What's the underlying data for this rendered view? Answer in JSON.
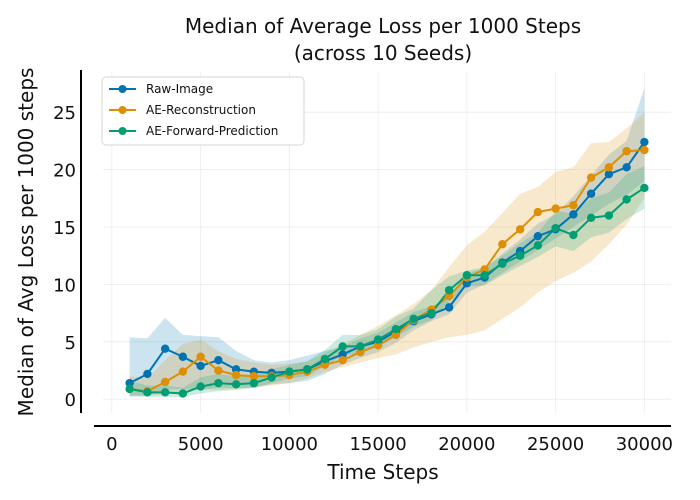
{
  "chart_data": {
    "type": "line",
    "title": "Median of Average Loss per 1000 Steps",
    "subtitle": "(across 10 Seeds)",
    "xlabel": "Time Steps",
    "ylabel": "Median of Avg Loss per 1000 steps",
    "xlim": [
      -500,
      31500
    ],
    "ylim": [
      -1.2,
      28.5
    ],
    "xticks": [
      0,
      5000,
      10000,
      15000,
      20000,
      25000,
      30000
    ],
    "yticks": [
      0,
      5,
      10,
      15,
      20,
      25
    ],
    "grid": true,
    "legend_position": "top-left",
    "x": [
      1000,
      2000,
      3000,
      4000,
      5000,
      6000,
      7000,
      8000,
      9000,
      10000,
      11000,
      12000,
      13000,
      14000,
      15000,
      16000,
      17000,
      18000,
      19000,
      20000,
      21000,
      22000,
      23000,
      24000,
      25000,
      26000,
      27000,
      28000,
      29000,
      30000
    ],
    "series": [
      {
        "name": "Raw-Image",
        "color": "#0173b2",
        "values": [
          1.4,
          2.2,
          4.4,
          3.7,
          2.9,
          3.4,
          2.6,
          2.4,
          2.3,
          2.4,
          2.6,
          3.3,
          3.9,
          4.6,
          5.0,
          5.9,
          6.8,
          7.4,
          8.0,
          10.1,
          10.6,
          11.9,
          12.9,
          14.2,
          14.8,
          16.1,
          17.9,
          19.6,
          20.2,
          22.4
        ],
        "band_low": [
          0.2,
          0.3,
          0.8,
          0.9,
          0.8,
          1.0,
          1.0,
          1.0,
          1.3,
          1.4,
          1.6,
          2.2,
          3.0,
          3.6,
          4.1,
          4.9,
          6.0,
          6.8,
          7.4,
          9.3,
          10.0,
          11.0,
          12.0,
          13.0,
          14.0,
          15.0,
          16.0,
          17.0,
          17.8,
          19.0
        ],
        "band_high": [
          5.4,
          5.3,
          7.1,
          5.6,
          5.5,
          5.4,
          4.2,
          3.4,
          3.2,
          3.4,
          3.8,
          4.2,
          4.6,
          5.3,
          5.8,
          6.7,
          7.6,
          8.1,
          8.9,
          11.0,
          11.4,
          12.7,
          13.9,
          15.3,
          16.1,
          17.7,
          19.5,
          21.3,
          22.5,
          27.1
        ]
      },
      {
        "name": "AE-Reconstruction",
        "color": "#de8f05",
        "values": [
          0.9,
          0.7,
          1.5,
          2.4,
          3.7,
          2.5,
          2.1,
          2.0,
          2.0,
          2.1,
          2.4,
          3.0,
          3.4,
          4.1,
          4.7,
          5.6,
          6.9,
          7.8,
          9.0,
          10.6,
          11.3,
          13.5,
          14.8,
          16.3,
          16.6,
          16.9,
          19.3,
          20.2,
          21.6,
          21.7
        ],
        "band_low": [
          0.4,
          0.3,
          0.4,
          0.6,
          0.9,
          0.8,
          0.9,
          1.0,
          1.2,
          1.4,
          1.8,
          2.4,
          2.8,
          3.2,
          3.6,
          3.9,
          4.5,
          5.0,
          5.4,
          5.6,
          6.0,
          7.0,
          8.0,
          9.3,
          10.3,
          11.0,
          12.0,
          13.5,
          15.2,
          17.5
        ],
        "band_high": [
          2.0,
          1.8,
          3.4,
          4.8,
          5.2,
          4.2,
          3.5,
          3.2,
          3.0,
          3.1,
          3.3,
          4.0,
          4.8,
          5.6,
          6.4,
          7.3,
          8.3,
          9.5,
          11.5,
          13.4,
          14.6,
          16.2,
          17.9,
          18.5,
          19.8,
          20.2,
          22.3,
          22.4,
          23.6,
          25.0
        ]
      },
      {
        "name": "AE-Forward-Prediction",
        "color": "#029e73",
        "values": [
          0.9,
          0.6,
          0.6,
          0.5,
          1.1,
          1.4,
          1.3,
          1.4,
          1.9,
          2.4,
          2.6,
          3.5,
          4.6,
          4.6,
          5.2,
          6.1,
          7.0,
          7.5,
          9.5,
          10.8,
          10.8,
          11.8,
          12.5,
          13.4,
          14.9,
          14.3,
          15.8,
          16.0,
          17.4,
          18.4
        ],
        "band_low": [
          0.3,
          0.2,
          0.2,
          0.2,
          0.5,
          0.7,
          0.8,
          1.0,
          1.4,
          1.8,
          2.0,
          2.9,
          3.8,
          4.0,
          4.6,
          5.4,
          6.3,
          6.9,
          8.5,
          9.8,
          9.9,
          10.8,
          11.6,
          12.4,
          13.3,
          12.9,
          14.1,
          14.5,
          15.7,
          16.6
        ],
        "band_high": [
          1.6,
          1.2,
          1.2,
          1.0,
          1.9,
          2.2,
          2.0,
          2.1,
          2.6,
          3.0,
          3.3,
          4.3,
          5.6,
          5.6,
          6.1,
          7.2,
          7.9,
          9.5,
          10.7,
          11.2,
          11.5,
          12.5,
          13.6,
          14.5,
          16.4,
          16.2,
          17.5,
          18.0,
          19.6,
          20.3
        ]
      }
    ]
  }
}
